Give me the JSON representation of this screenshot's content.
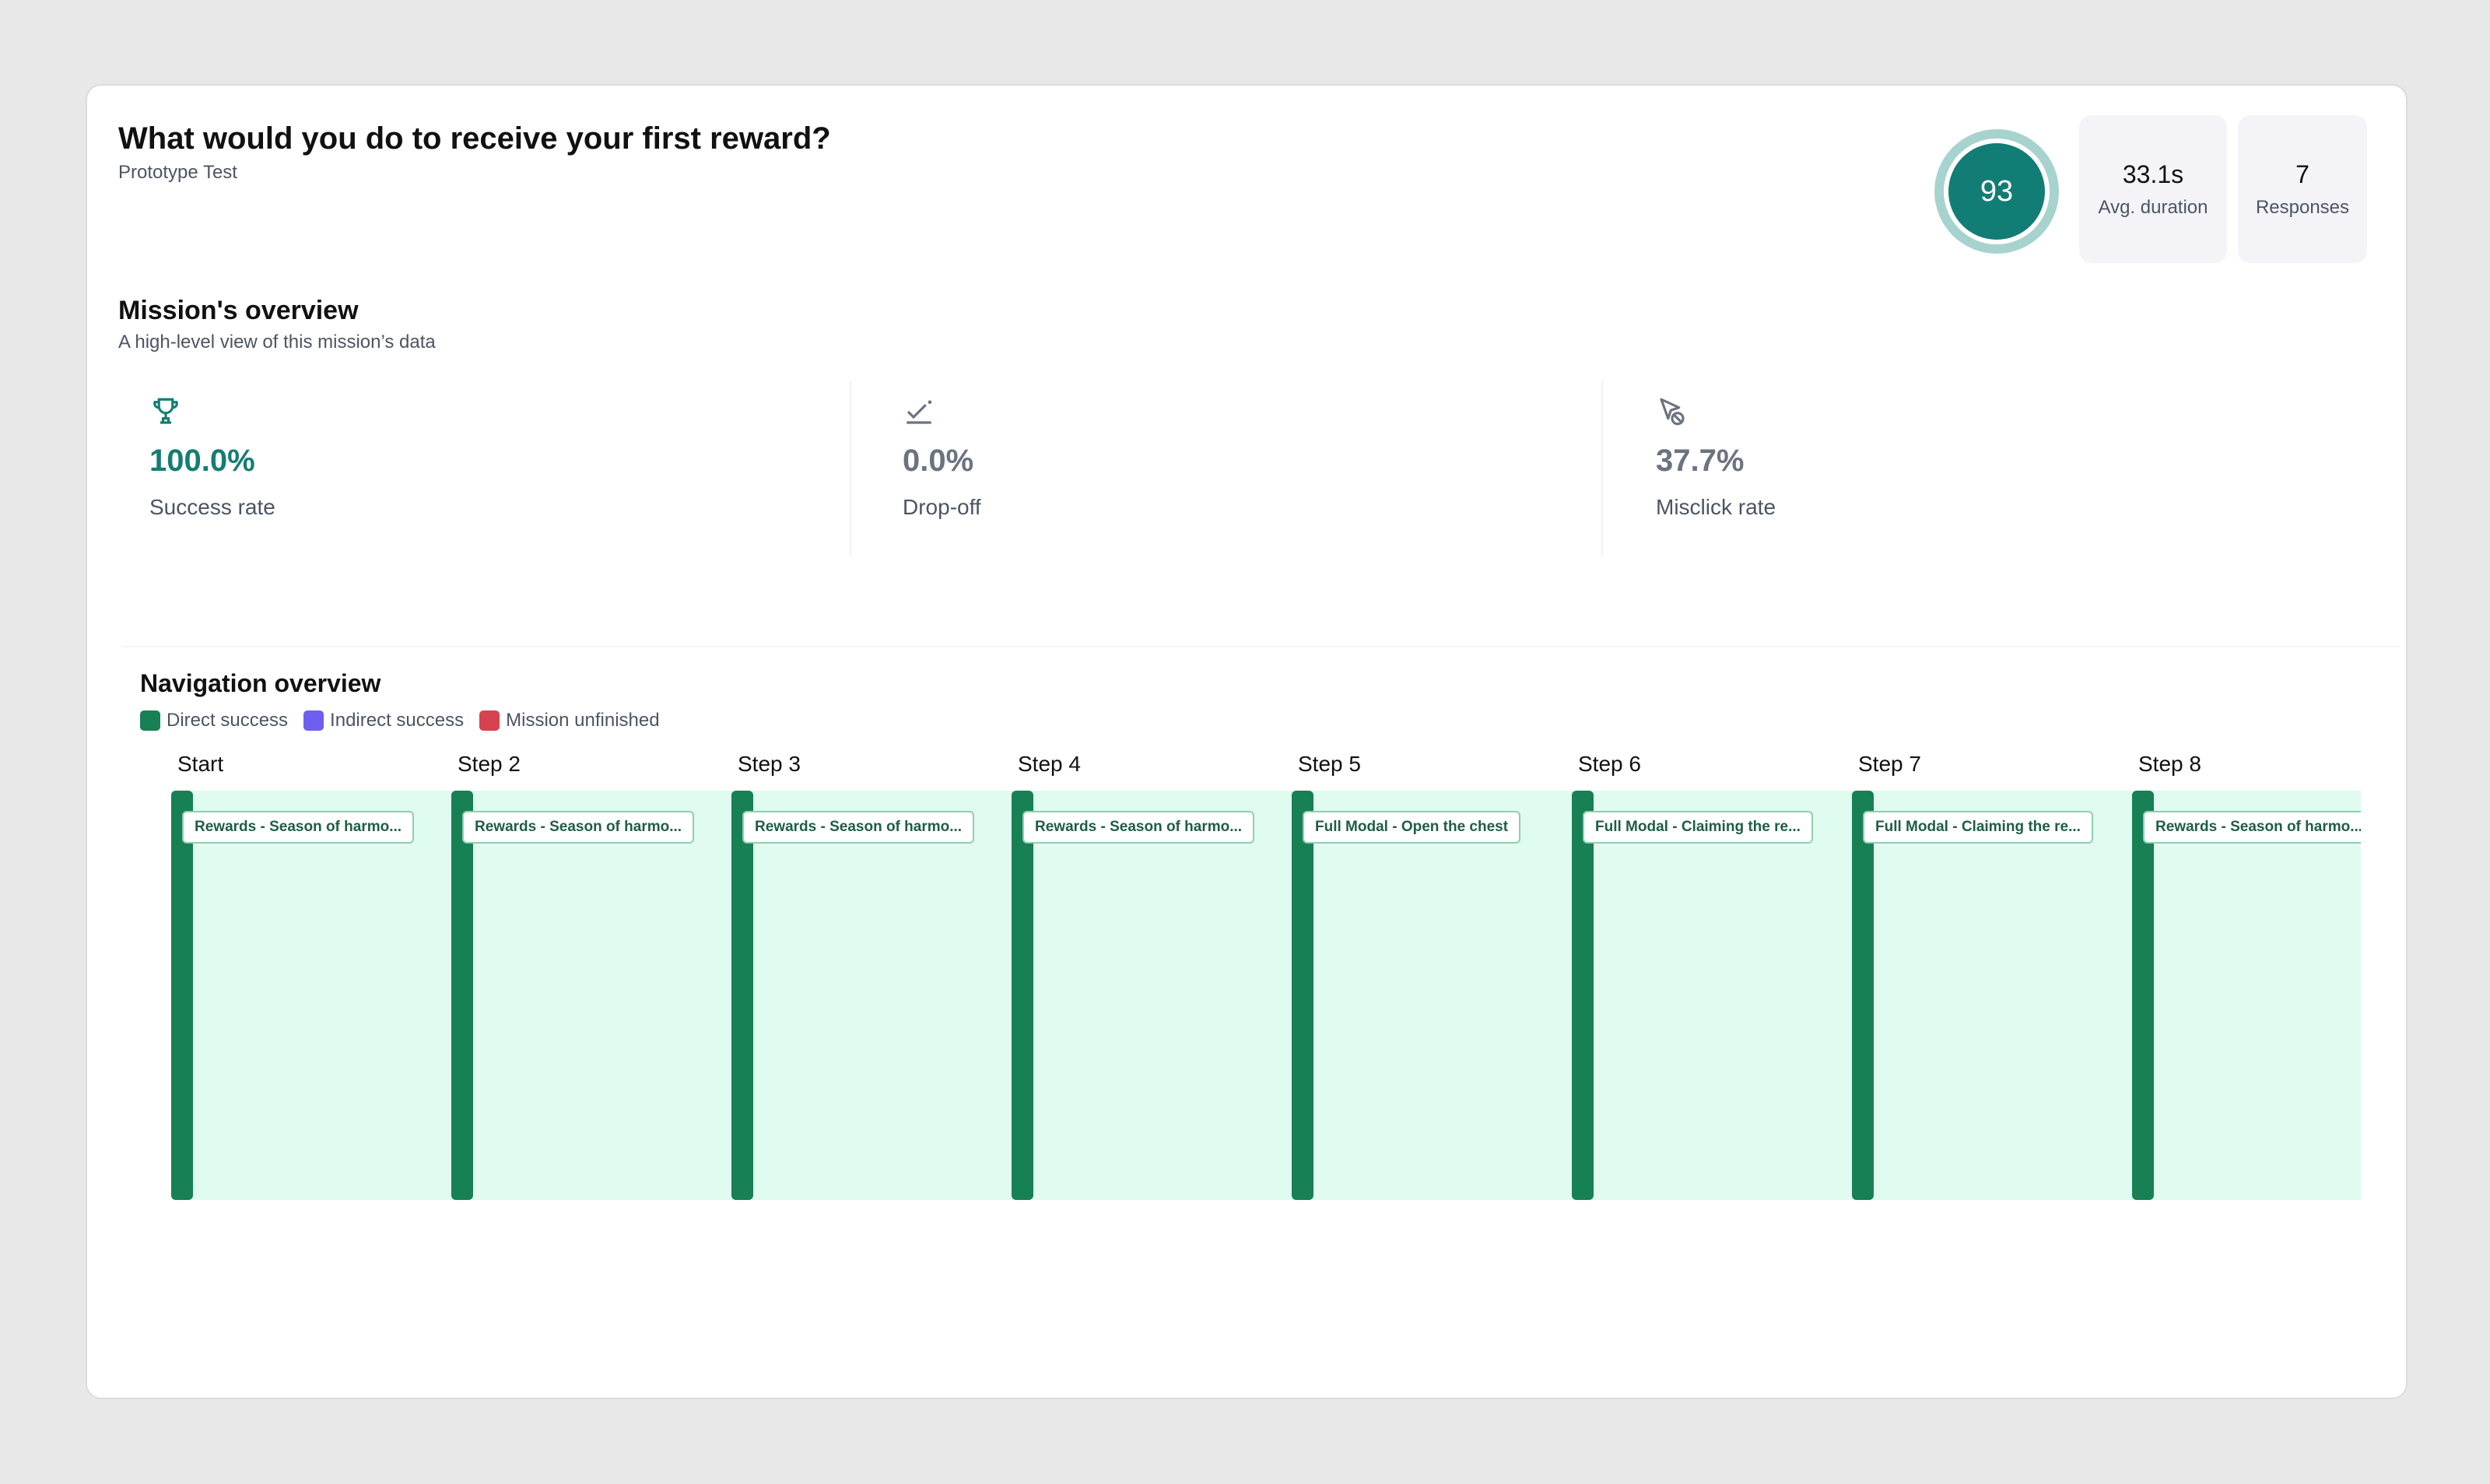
{
  "header": {
    "title": "What would you do to receive your first reward?",
    "subtitle": "Prototype Test",
    "score": "93",
    "avg_duration": {
      "value": "33.1s",
      "label": "Avg. duration"
    },
    "responses": {
      "value": "7",
      "label": "Responses"
    }
  },
  "overview": {
    "title": "Mission's overview",
    "subtitle": "A high-level view of this mission’s data",
    "metrics": [
      {
        "icon": "trophy-icon",
        "value": "100.0%",
        "label": "Success rate",
        "color": "#157d72"
      },
      {
        "icon": "drop-off-icon",
        "value": "0.0%",
        "label": "Drop-off",
        "color": "#6b7280"
      },
      {
        "icon": "misclick-icon",
        "value": "37.7%",
        "label": "Misclick rate",
        "color": "#6b7280"
      }
    ]
  },
  "navigation": {
    "title": "Navigation overview",
    "legend": [
      {
        "label": "Direct success",
        "color": "#178055"
      },
      {
        "label": "Indirect success",
        "color": "#6d5ff0"
      },
      {
        "label": "Mission unfinished",
        "color": "#d6424f"
      }
    ],
    "steps": [
      {
        "label": "Start",
        "screen": "Rewards - Season of harmo..."
      },
      {
        "label": "Step 2",
        "screen": "Rewards - Season of harmo..."
      },
      {
        "label": "Step 3",
        "screen": "Rewards - Season of harmo..."
      },
      {
        "label": "Step 4",
        "screen": "Rewards - Season of harmo..."
      },
      {
        "label": "Step 5",
        "screen": "Full Modal - Open the chest"
      },
      {
        "label": "Step 6",
        "screen": "Full Modal - Claiming the re..."
      },
      {
        "label": "Step 7",
        "screen": "Full Modal - Claiming the re..."
      },
      {
        "label": "Step 8",
        "screen": "Rewards - Season of harmo..."
      }
    ]
  }
}
